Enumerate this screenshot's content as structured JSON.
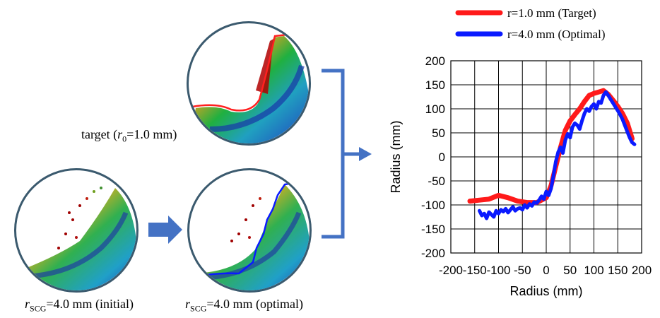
{
  "captions": {
    "target_prefix": "target (",
    "target_var": "r",
    "target_sub": "0",
    "target_suffix": "=1.0 mm)",
    "initial_var": "r",
    "initial_sub": "SCG",
    "initial_suffix": "=4.0 mm (initial)",
    "optimal_var": "r",
    "optimal_sub": "SCG",
    "optimal_suffix": "=4.0 mm (optimal)"
  },
  "colors": {
    "target": "#ff1a1a",
    "optimal": "#0a1aff",
    "arrow": "#4472c4",
    "circle_border": "#3b5a6e"
  },
  "chart_data": {
    "type": "line",
    "xlabel": "Radius (mm)",
    "ylabel": "Radius (mm)",
    "xlim": [
      -200,
      200
    ],
    "ylim": [
      -200,
      200
    ],
    "xticks": [
      -200,
      -150,
      -100,
      -50,
      0,
      50,
      100,
      150,
      200
    ],
    "yticks": [
      -200,
      -150,
      -100,
      -50,
      0,
      50,
      100,
      150,
      200
    ],
    "xtick_labels": [
      "-200",
      "-150",
      "-100",
      "-50",
      "0",
      "50",
      "100",
      "150",
      "200"
    ],
    "ytick_labels": [
      "-200",
      "-150",
      "-100",
      "-50",
      "0",
      "50",
      "100",
      "150",
      "200"
    ],
    "grid": true,
    "legend_position": "top-right",
    "series": [
      {
        "name": "r=1.0 mm (Target)",
        "color": "#ff1a1a",
        "x": [
          -160,
          -140,
          -120,
          -100,
          -80,
          -60,
          -40,
          -20,
          0,
          10,
          20,
          30,
          40,
          50,
          60,
          70,
          80,
          90,
          100,
          110,
          120,
          130,
          140,
          150,
          160,
          170,
          180
        ],
        "y": [
          -92,
          -90,
          -88,
          -80,
          -85,
          -92,
          -95,
          -95,
          -85,
          -60,
          -20,
          20,
          55,
          75,
          88,
          100,
          115,
          128,
          132,
          135,
          138,
          130,
          118,
          105,
          90,
          70,
          38
        ]
      },
      {
        "name": "r=4.0 mm (Optimal)",
        "color": "#0a1aff",
        "x": [
          -140,
          -135,
          -130,
          -125,
          -120,
          -115,
          -110,
          -105,
          -100,
          -95,
          -90,
          -85,
          -80,
          -75,
          -70,
          -65,
          -60,
          -55,
          -50,
          -45,
          -40,
          -35,
          -30,
          -25,
          -20,
          -15,
          -10,
          -5,
          0,
          5,
          10,
          15,
          20,
          25,
          30,
          35,
          40,
          45,
          50,
          55,
          60,
          65,
          70,
          75,
          80,
          85,
          90,
          95,
          100,
          105,
          110,
          115,
          120,
          125,
          130,
          135,
          140,
          145,
          150,
          155,
          160,
          165,
          170,
          175,
          180,
          185
        ],
        "y": [
          -112,
          -122,
          -118,
          -128,
          -115,
          -120,
          -125,
          -112,
          -118,
          -110,
          -114,
          -108,
          -116,
          -110,
          -104,
          -112,
          -108,
          -106,
          -110,
          -100,
          -106,
          -98,
          -102,
          -94,
          -96,
          -90,
          -82,
          -88,
          -72,
          -80,
          -66,
          -40,
          -10,
          10,
          20,
          8,
          35,
          48,
          40,
          62,
          70,
          66,
          58,
          75,
          90,
          100,
          95,
          105,
          110,
          100,
          115,
          112,
          128,
          135,
          128,
          120,
          112,
          104,
          96,
          88,
          78,
          65,
          52,
          40,
          30,
          26
        ]
      }
    ]
  }
}
